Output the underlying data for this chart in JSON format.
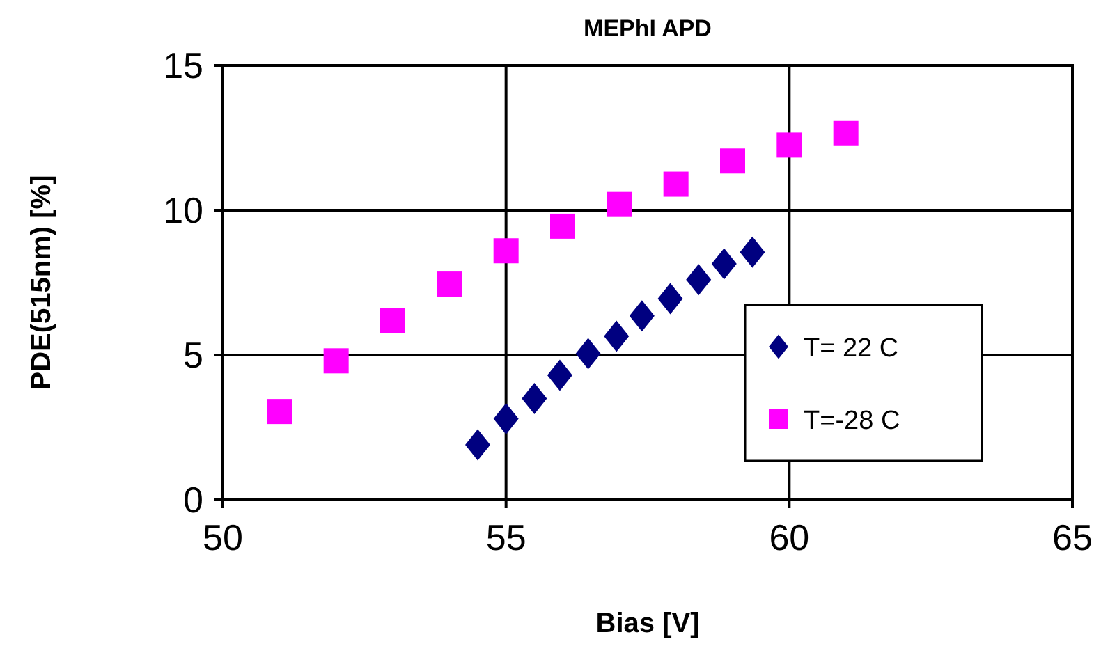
{
  "chart_data": {
    "type": "scatter",
    "title": "MEPhI APD",
    "xlabel": "Bias [V]",
    "ylabel": "PDE(515nm) [%]",
    "xlim": [
      50,
      65
    ],
    "xticks": [
      50,
      55,
      60,
      65
    ],
    "ylim": [
      0,
      15
    ],
    "yticks": [
      0,
      5,
      10,
      15
    ],
    "grid": true,
    "legend": "bottom right",
    "series": [
      {
        "name": "T= 22 C",
        "color": "#000080",
        "marker": "diamond",
        "x": [
          54.5,
          55,
          55.5,
          55.95,
          56.45,
          56.95,
          57.4,
          57.9,
          58.4,
          58.85,
          59.35
        ],
        "values": [
          1.9,
          2.8,
          3.5,
          4.3,
          5.05,
          5.65,
          6.35,
          6.95,
          7.6,
          8.15,
          8.55
        ]
      },
      {
        "name": "T=-28 C",
        "color": "#ff00ff",
        "marker": "square",
        "x": [
          51,
          52,
          53,
          54,
          55,
          56,
          57,
          58,
          59,
          60,
          61
        ],
        "values": [
          3.05,
          4.8,
          6.2,
          7.45,
          8.6,
          9.45,
          10.2,
          10.9,
          11.7,
          12.25,
          12.65
        ]
      }
    ]
  }
}
